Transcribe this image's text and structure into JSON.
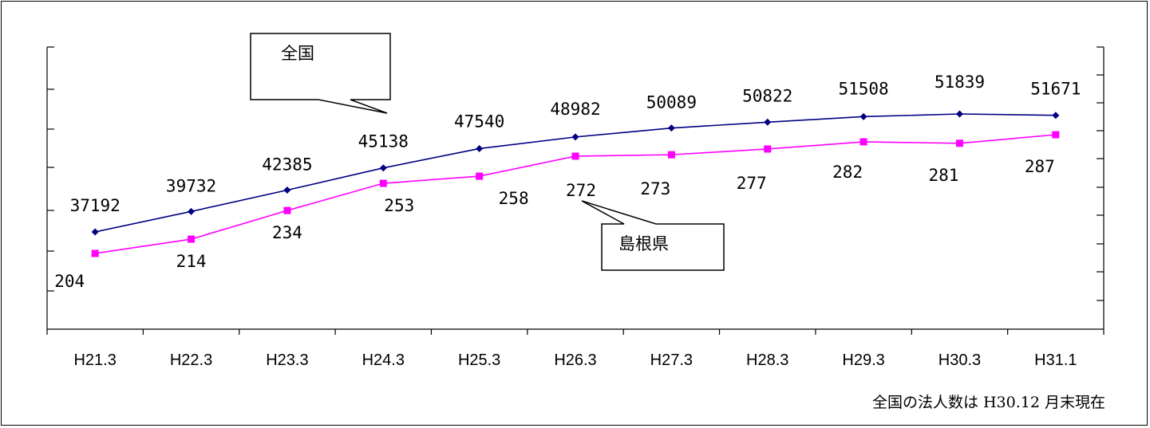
{
  "chart_data": {
    "type": "line",
    "categories": [
      "H21.3",
      "H22.3",
      "H23.3",
      "H24.3",
      "H25.3",
      "H26.3",
      "H27.3",
      "H28.3",
      "H29.3",
      "H30.3",
      "H31.1"
    ],
    "series": [
      {
        "name": "全国",
        "color": "#000080",
        "marker": "diamond",
        "values": [
          37192,
          39732,
          42385,
          45138,
          47540,
          48982,
          50089,
          50822,
          51508,
          51839,
          51671
        ]
      },
      {
        "name": "島根県",
        "color": "#ff00ff",
        "marker": "square",
        "values": [
          204,
          214,
          234,
          253,
          258,
          272,
          273,
          277,
          282,
          281,
          287
        ]
      }
    ],
    "axes": {
      "left": {
        "series": "島根県",
        "tick_labels": "none",
        "grid": false
      },
      "right": {
        "series": "全国",
        "tick_labels": "none",
        "grid": false
      }
    },
    "data_labels": true,
    "legend": "callouts",
    "callouts": [
      {
        "series": "全国",
        "text": "全国"
      },
      {
        "series": "島根県",
        "text": "島根県"
      }
    ],
    "note": "全国の法人数は H30.12 月末現在"
  }
}
